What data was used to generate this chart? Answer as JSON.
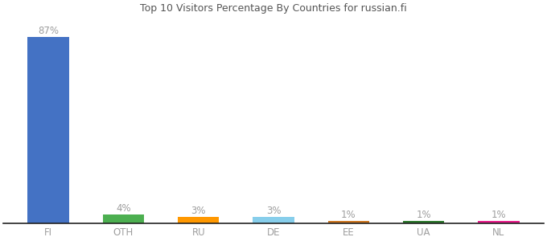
{
  "categories": [
    "FI",
    "OTH",
    "RU",
    "DE",
    "EE",
    "UA",
    "NL"
  ],
  "values": [
    87,
    4,
    3,
    3,
    1,
    1,
    1
  ],
  "bar_colors": [
    "#4472c4",
    "#4caf50",
    "#ff9800",
    "#87ceeb",
    "#cd7722",
    "#2d7a2d",
    "#e91e8c"
  ],
  "label_color": "#9e9e9e",
  "tick_color": "#9e9e9e",
  "ylim": [
    0,
    97
  ],
  "background_color": "#ffffff",
  "label_fontsize": 8.5,
  "tick_fontsize": 8.5,
  "bar_width": 0.55
}
